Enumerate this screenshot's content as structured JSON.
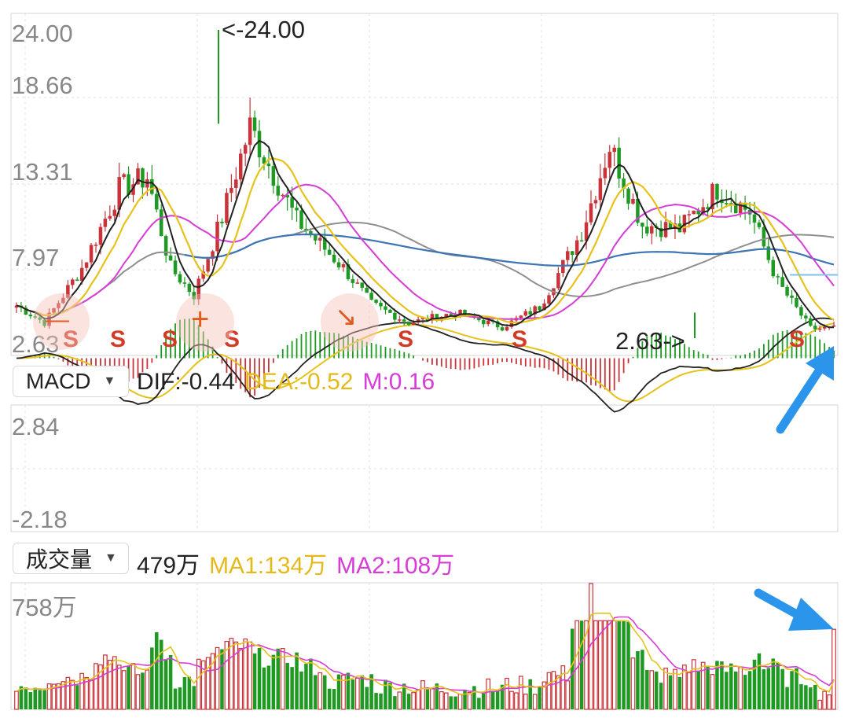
{
  "colors": {
    "up": "#c8343a",
    "down": "#1e9a23",
    "ma_black": "#222222",
    "ma_yellow": "#e6c21b",
    "ma_magenta": "#d63cd6",
    "ma_gray": "#8f8f8f",
    "ma_blue": "#3b75b3",
    "s_marker": "#d23b25",
    "arrow": "#2a95ea",
    "grid": "#e2e2e2"
  },
  "price_panel": {
    "y_ticks": [
      "24.00",
      "18.66",
      "13.31",
      "7.97",
      "2.63"
    ],
    "max_annotation": "<-24.00",
    "min_annotation": "2.63->",
    "markers": [
      "S",
      "S",
      "S",
      "S",
      "S",
      "S",
      "S"
    ],
    "events": {
      "plus": "+",
      "minus": "—"
    }
  },
  "macd": {
    "selector": "MACD",
    "dif_label": "DIF:-0.44",
    "dea_label": "DEA:-0.52",
    "m_label": "M:0.16",
    "y_ticks": [
      "2.84",
      "-2.18"
    ]
  },
  "volume": {
    "selector": "成交量",
    "value_label": "479万",
    "ma1_label": "MA1:134万",
    "ma2_label": "MA2:108万",
    "y_tick": "758万"
  },
  "chart_data": {
    "type": "candlestick",
    "ylim": [
      2.63,
      24.0
    ],
    "max_price": 24.0,
    "min_price": 2.63,
    "macd": {
      "dif": -0.44,
      "dea": -0.52,
      "m": 0.16,
      "ylim": [
        -2.18,
        2.84
      ]
    },
    "volume": {
      "last": "479万",
      "ma1": "134万",
      "ma2": "108万",
      "ymax": "758万"
    }
  }
}
